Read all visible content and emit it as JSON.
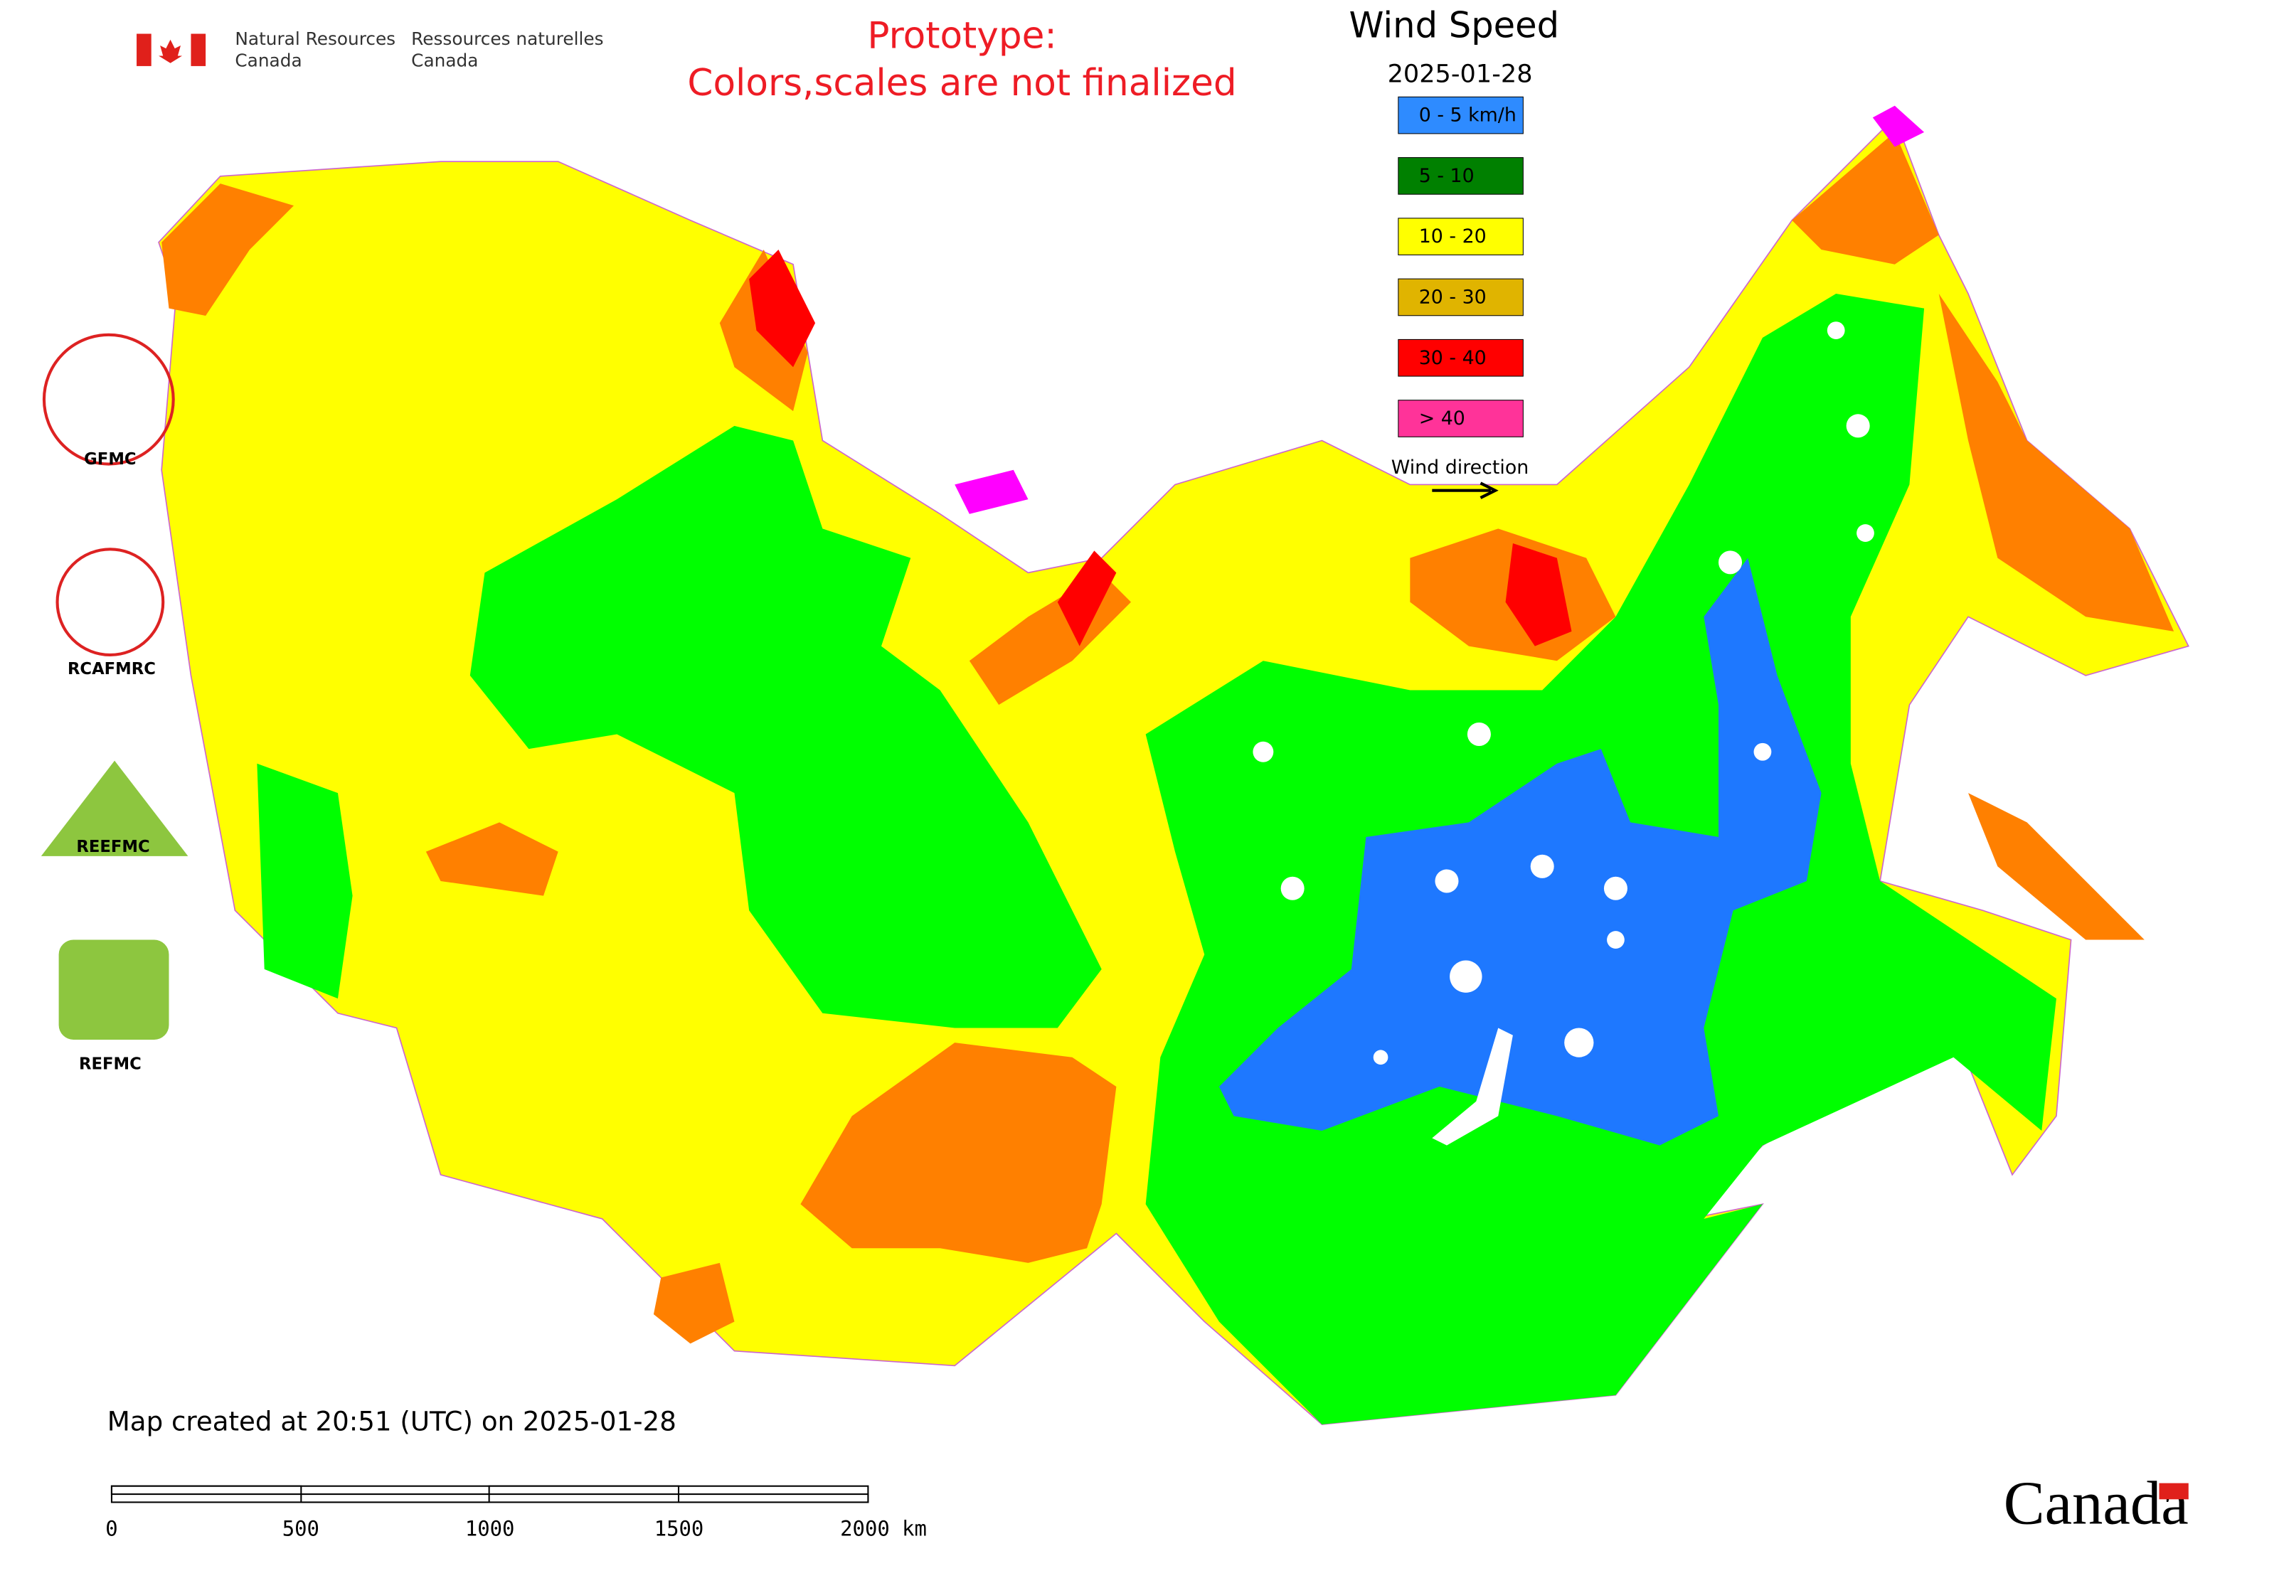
{
  "header": {
    "agency_en": [
      "Natural Resources",
      "Canada"
    ],
    "agency_fr": [
      "Ressources naturelles",
      "Canada"
    ],
    "notice": [
      "Prototype:",
      "Colors,scales are not finalized"
    ]
  },
  "legend": {
    "title": "Wind Speed",
    "date": "2025-01-28",
    "items": [
      {
        "label": "0 - 5 km/h",
        "color": "#2e8bff"
      },
      {
        "label": "5 - 10",
        "color": "#008000"
      },
      {
        "label": "10 - 20",
        "color": "#ffff00"
      },
      {
        "label": "20 - 30",
        "color": "#e0b400"
      },
      {
        "label": "30 - 40",
        "color": "#ff0000"
      },
      {
        "label": "> 40",
        "color": "#ff3399"
      }
    ],
    "direction": "Wind direction"
  },
  "logos": [
    "GFMC",
    "RCAFMRC",
    "REEFMC",
    "REFMC"
  ],
  "footer": {
    "created": "Map created at 20:51 (UTC) on 2025-01-28",
    "scale_labels": [
      "0",
      "500",
      "1000",
      "1500",
      "2000 km"
    ],
    "wordmark": "Canada"
  }
}
